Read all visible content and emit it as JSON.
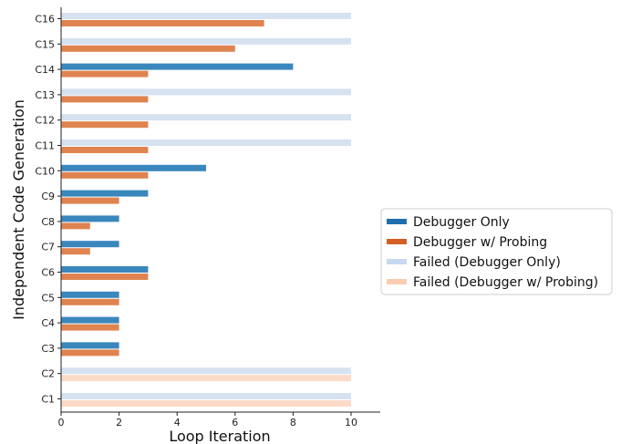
{
  "chart_data": {
    "type": "bar",
    "orientation": "horizontal",
    "xlabel": "Loop Iteration",
    "ylabel": "Independent Code Generation",
    "xlim": [
      0,
      11
    ],
    "xticks": [
      0,
      2,
      4,
      6,
      8,
      10
    ],
    "categories": [
      "C16",
      "C15",
      "C14",
      "C13",
      "C12",
      "C11",
      "C10",
      "C9",
      "C8",
      "C7",
      "C6",
      "C5",
      "C4",
      "C3",
      "C2",
      "C1"
    ],
    "series": [
      {
        "name": "Debugger Only",
        "key": "debugger_only",
        "color": "#3a87bd",
        "legend_color": "#1f6fae",
        "values": [
          null,
          null,
          8,
          null,
          null,
          null,
          5,
          3,
          2,
          2,
          3,
          2,
          2,
          2,
          null,
          null
        ]
      },
      {
        "name": "Debugger w/ Probing",
        "key": "debugger_probing",
        "color": "#df8450",
        "legend_color": "#d45f24",
        "values": [
          7,
          6,
          3,
          3,
          3,
          3,
          3,
          2,
          1,
          1,
          3,
          2,
          2,
          2,
          null,
          null
        ]
      },
      {
        "name": "Failed (Debugger Only)",
        "key": "failed_debugger_only",
        "color": "#d6e2f0",
        "legend_color": "#c6d9ee",
        "values": [
          10,
          10,
          null,
          10,
          10,
          10,
          null,
          null,
          null,
          null,
          null,
          null,
          null,
          null,
          10,
          10
        ]
      },
      {
        "name": "Failed (Debugger w/ Probing)",
        "key": "failed_debugger_probing",
        "color": "#fbdbc8",
        "legend_color": "#f9cdb0",
        "values": [
          null,
          null,
          null,
          null,
          null,
          null,
          null,
          null,
          null,
          null,
          null,
          null,
          null,
          null,
          10,
          10
        ]
      }
    ],
    "legend_position": "center-right"
  }
}
